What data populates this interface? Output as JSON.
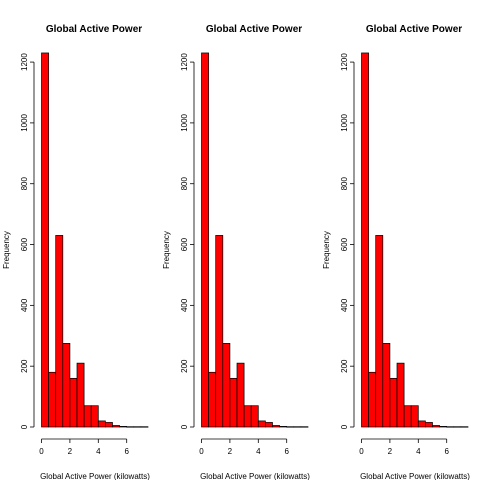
{
  "colors": {
    "bar_fill": "#ff0000",
    "bar_stroke": "#000000",
    "background": "#ffffff"
  },
  "chart_data": [
    {
      "type": "bar",
      "title": "Global Active Power",
      "xlabel": "Global Active Power (kilowatts)",
      "ylabel": "Frequency",
      "bin_edges": [
        0,
        0.5,
        1,
        1.5,
        2,
        2.5,
        3,
        3.5,
        4,
        4.5,
        5,
        5.5,
        6,
        6.5,
        7,
        7.5
      ],
      "values": [
        1230,
        180,
        630,
        275,
        160,
        210,
        70,
        70,
        20,
        15,
        5,
        2,
        1,
        1,
        1
      ],
      "xlim": [
        0,
        7.5
      ],
      "ylim": [
        0,
        1230
      ],
      "xticks": [
        0,
        2,
        4,
        6
      ],
      "yticks": [
        0,
        200,
        400,
        600,
        800,
        1000,
        1200
      ],
      "grid": false
    },
    {
      "type": "bar",
      "title": "Global Active Power",
      "xlabel": "Global Active Power (kilowatts)",
      "ylabel": "Frequency",
      "bin_edges": [
        0,
        0.5,
        1,
        1.5,
        2,
        2.5,
        3,
        3.5,
        4,
        4.5,
        5,
        5.5,
        6,
        6.5,
        7,
        7.5
      ],
      "values": [
        1230,
        180,
        630,
        275,
        160,
        210,
        70,
        70,
        20,
        15,
        5,
        2,
        1,
        1,
        1
      ],
      "xlim": [
        0,
        7.5
      ],
      "ylim": [
        0,
        1230
      ],
      "xticks": [
        0,
        2,
        4,
        6
      ],
      "yticks": [
        0,
        200,
        400,
        600,
        800,
        1000,
        1200
      ],
      "grid": false
    },
    {
      "type": "bar",
      "title": "Global Active Power",
      "xlabel": "Global Active Power (kilowatts)",
      "ylabel": "Frequency",
      "bin_edges": [
        0,
        0.5,
        1,
        1.5,
        2,
        2.5,
        3,
        3.5,
        4,
        4.5,
        5,
        5.5,
        6,
        6.5,
        7,
        7.5
      ],
      "values": [
        1230,
        180,
        630,
        275,
        160,
        210,
        70,
        70,
        20,
        15,
        5,
        2,
        1,
        1,
        1
      ],
      "xlim": [
        0,
        7.5
      ],
      "ylim": [
        0,
        1230
      ],
      "xticks": [
        0,
        2,
        4,
        6
      ],
      "yticks": [
        0,
        200,
        400,
        600,
        800,
        1000,
        1200
      ],
      "grid": false
    }
  ]
}
